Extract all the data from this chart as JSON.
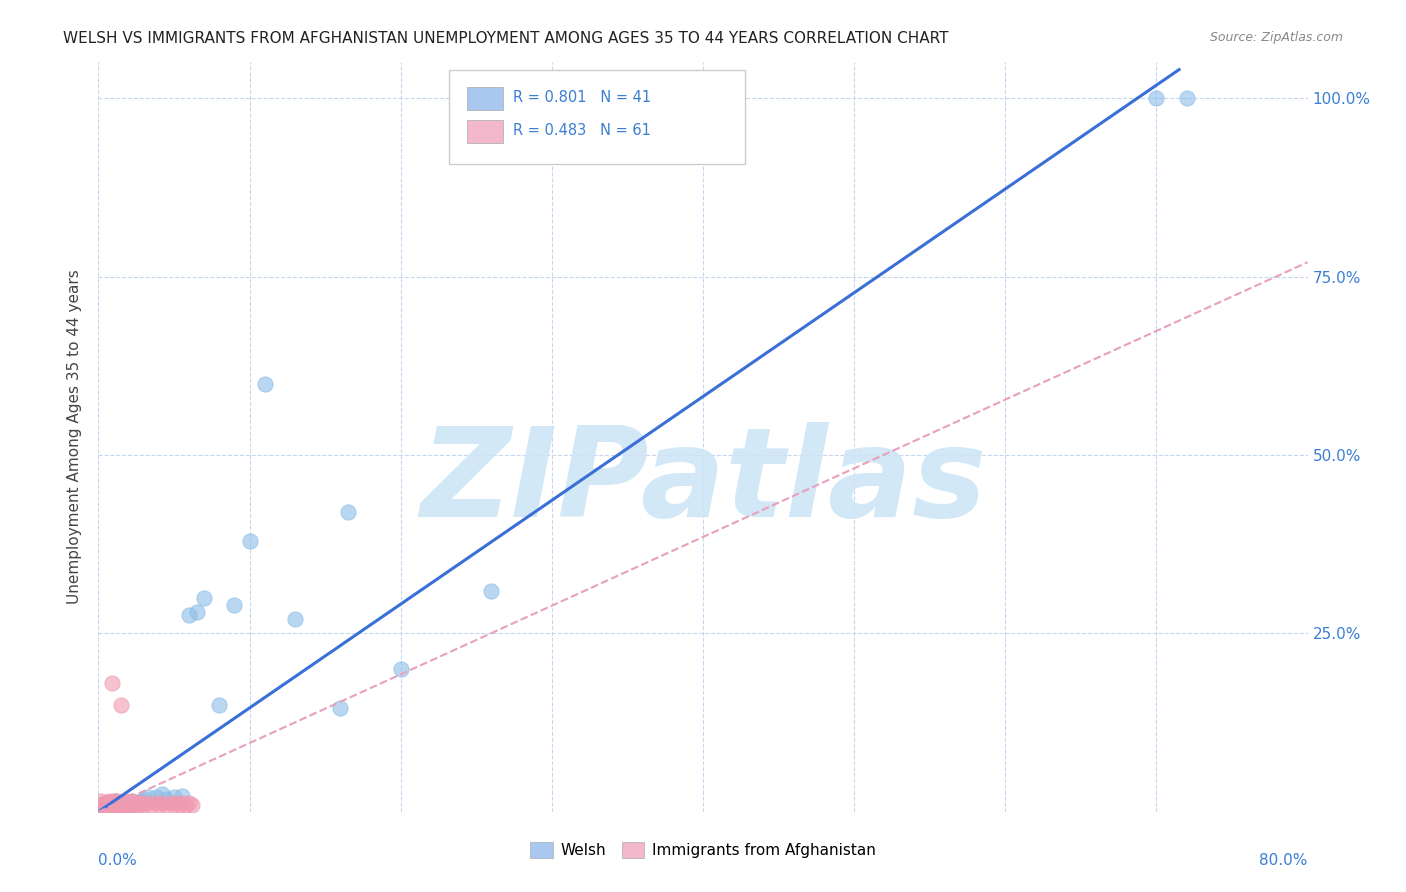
{
  "title": "WELSH VS IMMIGRANTS FROM AFGHANISTAN UNEMPLOYMENT AMONG AGES 35 TO 44 YEARS CORRELATION CHART",
  "source": "Source: ZipAtlas.com",
  "ylabel": "Unemployment Among Ages 35 to 44 years",
  "xlim": [
    0,
    0.8
  ],
  "ylim": [
    0,
    1.05
  ],
  "yticks": [
    0.0,
    0.25,
    0.5,
    0.75,
    1.0
  ],
  "ytick_labels": [
    "",
    "25.0%",
    "50.0%",
    "75.0%",
    "100.0%"
  ],
  "xticks": [
    0.0,
    0.1,
    0.2,
    0.3,
    0.4,
    0.5,
    0.6,
    0.7,
    0.8
  ],
  "legend_r1": "R = 0.801",
  "legend_n1": "N = 41",
  "legend_r2": "R = 0.483",
  "legend_n2": "N = 61",
  "legend_color1": "#a8c8f0",
  "legend_color2": "#f4b8cc",
  "watermark": "ZIPatlas",
  "watermark_color": "#cce4f5",
  "title_fontsize": 11,
  "source_fontsize": 9,
  "welsh_color": "#8bbde8",
  "afghan_color": "#f09ab0",
  "line_blue": "#3a6fd8",
  "line_pink": "#e8a0bc",
  "background_color": "#ffffff",
  "welsh_points_x": [
    0.003,
    0.004,
    0.005,
    0.006,
    0.007,
    0.008,
    0.009,
    0.01,
    0.011,
    0.012,
    0.013,
    0.014,
    0.015,
    0.016,
    0.018,
    0.02,
    0.022,
    0.025,
    0.028,
    0.03,
    0.033,
    0.038,
    0.042,
    0.045,
    0.05,
    0.055,
    0.06,
    0.065,
    0.07,
    0.08,
    0.09,
    0.1,
    0.11,
    0.13,
    0.16,
    0.165,
    0.2,
    0.26,
    0.39,
    0.7,
    0.72
  ],
  "welsh_points_y": [
    0.008,
    0.01,
    0.012,
    0.008,
    0.01,
    0.01,
    0.012,
    0.008,
    0.015,
    0.01,
    0.012,
    0.01,
    0.008,
    0.01,
    0.012,
    0.012,
    0.015,
    0.012,
    0.015,
    0.018,
    0.02,
    0.02,
    0.025,
    0.018,
    0.02,
    0.022,
    0.275,
    0.28,
    0.3,
    0.15,
    0.29,
    0.38,
    0.6,
    0.27,
    0.145,
    0.42,
    0.2,
    0.31,
    1.0,
    1.0,
    1.0
  ],
  "afghan_points_x": [
    0.001,
    0.002,
    0.002,
    0.003,
    0.003,
    0.004,
    0.004,
    0.004,
    0.005,
    0.005,
    0.005,
    0.006,
    0.006,
    0.006,
    0.007,
    0.007,
    0.007,
    0.008,
    0.008,
    0.009,
    0.009,
    0.01,
    0.01,
    0.01,
    0.011,
    0.011,
    0.012,
    0.012,
    0.013,
    0.014,
    0.015,
    0.015,
    0.016,
    0.017,
    0.018,
    0.018,
    0.019,
    0.02,
    0.021,
    0.022,
    0.023,
    0.024,
    0.025,
    0.026,
    0.027,
    0.028,
    0.03,
    0.032,
    0.035,
    0.038,
    0.04,
    0.042,
    0.045,
    0.048,
    0.05,
    0.052,
    0.054,
    0.056,
    0.058,
    0.06,
    0.062
  ],
  "afghan_points_y": [
    0.008,
    0.008,
    0.015,
    0.01,
    0.008,
    0.008,
    0.01,
    0.012,
    0.008,
    0.01,
    0.012,
    0.01,
    0.012,
    0.008,
    0.01,
    0.012,
    0.015,
    0.008,
    0.012,
    0.01,
    0.18,
    0.008,
    0.01,
    0.015,
    0.01,
    0.012,
    0.01,
    0.015,
    0.012,
    0.01,
    0.012,
    0.15,
    0.01,
    0.012,
    0.015,
    0.01,
    0.012,
    0.01,
    0.012,
    0.015,
    0.01,
    0.012,
    0.01,
    0.012,
    0.01,
    0.012,
    0.01,
    0.012,
    0.01,
    0.012,
    0.01,
    0.012,
    0.01,
    0.012,
    0.01,
    0.012,
    0.01,
    0.012,
    0.01,
    0.012,
    0.01
  ],
  "blue_line_x": [
    0.0,
    0.715
  ],
  "blue_line_y": [
    0.0,
    1.04
  ],
  "pink_line_x": [
    0.0,
    0.8
  ],
  "pink_line_y": [
    0.0,
    0.77
  ]
}
